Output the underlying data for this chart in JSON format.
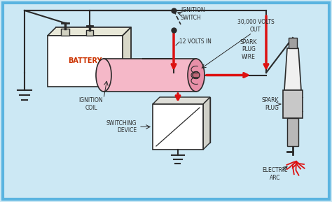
{
  "bg_color": "#cce8f4",
  "border_color": "#5ab4e0",
  "line_color": "#2a2a2a",
  "red_color": "#dd1111",
  "pink_coil_color": "#f5b8c8",
  "pink_coil_dark": "#e890a8",
  "white": "#ffffff",
  "battery_label": "BATTERY",
  "switching_label": "SWITCHING\nDEVICE",
  "ignition_coil_label": "IGNITION\nCOIL",
  "ignition_switch_label": "IGNITION\nSWITCH",
  "volts_in_label": "12 VOLTS IN",
  "volts_out_label": "30,000 VOLTS\nOUT",
  "spark_plug_wire_label": "SPARK\nPLUG\nWIRE",
  "spark_plug_label": "SPARK\nPLUG",
  "electric_arc_label": "ELECTRIC\nARC"
}
